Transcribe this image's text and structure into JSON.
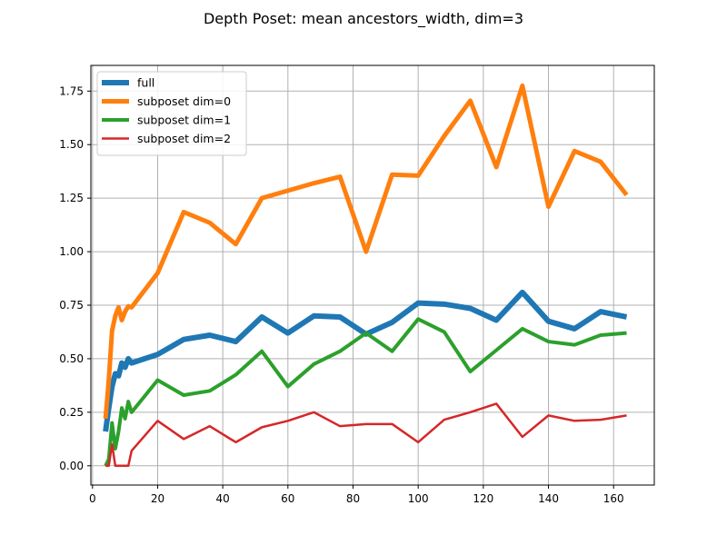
{
  "chart_data": {
    "type": "line",
    "title": "Depth Poset: mean ancestors_width, dim=3",
    "xlabel": "",
    "ylabel": "",
    "xlim": [
      -0.5,
      172.5
    ],
    "ylim": [
      -0.09,
      1.87
    ],
    "xticks": [
      0,
      20,
      40,
      60,
      80,
      100,
      120,
      140,
      160
    ],
    "yticks": [
      0.0,
      0.25,
      0.5,
      0.75,
      1.0,
      1.25,
      1.5,
      1.75
    ],
    "ytick_labels": [
      "0.00",
      "0.25",
      "0.50",
      "0.75",
      "1.00",
      "1.25",
      "1.50",
      "1.75"
    ],
    "grid": true,
    "legend_position": "top-left",
    "x": [
      4,
      5,
      6,
      7,
      8,
      9,
      10,
      11,
      12,
      20,
      28,
      36,
      44,
      52,
      60,
      68,
      76,
      84,
      92,
      100,
      108,
      116,
      124,
      132,
      140,
      148,
      156,
      164
    ],
    "series": [
      {
        "name": "full",
        "color": "#1f77b4",
        "width": 6,
        "values": [
          0.16,
          0.27,
          0.37,
          0.43,
          0.42,
          0.48,
          0.46,
          0.5,
          0.48,
          0.52,
          0.59,
          0.61,
          0.58,
          0.695,
          0.62,
          0.7,
          0.695,
          0.615,
          0.67,
          0.76,
          0.755,
          0.735,
          0.68,
          0.81,
          0.675,
          0.64,
          0.72,
          0.695
        ]
      },
      {
        "name": "subposet dim=0",
        "color": "#ff7f0e",
        "width": 5,
        "values": [
          0.22,
          0.4,
          0.63,
          0.7,
          0.74,
          0.68,
          0.72,
          0.745,
          0.74,
          0.9,
          1.185,
          1.135,
          1.035,
          1.25,
          1.285,
          1.32,
          1.35,
          1.0,
          1.36,
          1.355,
          1.54,
          1.705,
          1.395,
          1.775,
          1.21,
          1.47,
          1.42,
          1.265
        ]
      },
      {
        "name": "subposet dim=1",
        "color": "#2ca02c",
        "width": 4,
        "values": [
          0.0,
          0.03,
          0.2,
          0.08,
          0.16,
          0.27,
          0.22,
          0.3,
          0.25,
          0.4,
          0.33,
          0.35,
          0.425,
          0.535,
          0.37,
          0.475,
          0.535,
          0.62,
          0.535,
          0.685,
          0.625,
          0.44,
          0.54,
          0.64,
          0.58,
          0.565,
          0.61,
          0.62
        ]
      },
      {
        "name": "subposet dim=2",
        "color": "#d62728",
        "width": 2.5,
        "values": [
          0.0,
          0.0,
          0.1,
          0.0,
          0.0,
          0.0,
          0.0,
          0.0,
          0.07,
          0.21,
          0.125,
          0.185,
          0.11,
          0.18,
          0.21,
          0.25,
          0.185,
          0.195,
          0.195,
          0.11,
          0.215,
          0.25,
          0.29,
          0.135,
          0.235,
          0.21,
          0.215,
          0.235
        ]
      }
    ]
  }
}
